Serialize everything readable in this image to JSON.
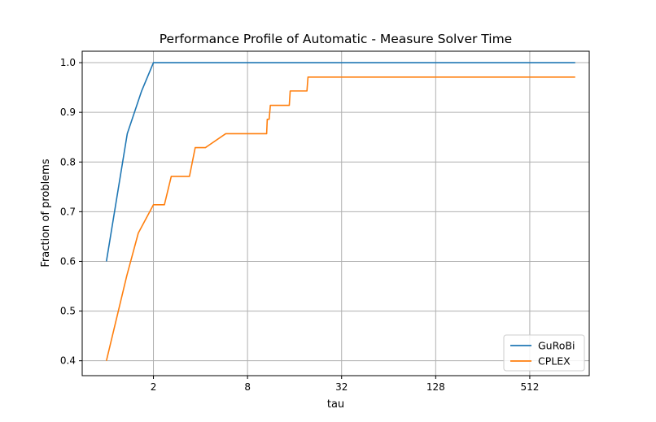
{
  "chart_data": {
    "type": "line",
    "title": "Performance Profile of Automatic - Measure Solver Time",
    "xlabel": "tau",
    "ylabel": "Fraction of problems",
    "x_scale": "log2",
    "xlim": [
      0.7,
      1230
    ],
    "ylim": [
      0.37,
      1.023
    ],
    "x_ticks": [
      2,
      8,
      32,
      128,
      512
    ],
    "x_tick_labels": [
      "2",
      "8",
      "32",
      "128",
      "512"
    ],
    "y_ticks": [
      0.4,
      0.5,
      0.6,
      0.7,
      0.8,
      0.9,
      1.0
    ],
    "y_tick_labels": [
      "0.4",
      "0.5",
      "0.6",
      "0.7",
      "0.8",
      "0.9",
      "1.0"
    ],
    "grid": true,
    "legend_position": "lower-right",
    "colors": {
      "GuRoBi": "#1f77b4",
      "CPLEX": "#ff7f0e"
    },
    "series": [
      {
        "name": "GuRoBi",
        "x": [
          1.0,
          1.36,
          1.68,
          2.0,
          1000
        ],
        "y": [
          0.6,
          0.857,
          0.943,
          1.0,
          1.0
        ]
      },
      {
        "name": "CPLEX",
        "x": [
          1.0,
          1.35,
          1.6,
          2.0,
          2.35,
          2.6,
          3.4,
          3.7,
          4.3,
          5.8,
          6.2,
          10.6,
          10.7,
          11.0,
          11.2,
          11.4,
          14.8,
          15.0,
          19.2,
          19.5,
          1000
        ],
        "y": [
          0.4,
          0.571,
          0.657,
          0.714,
          0.714,
          0.771,
          0.771,
          0.829,
          0.829,
          0.857,
          0.857,
          0.857,
          0.886,
          0.886,
          0.914,
          0.914,
          0.914,
          0.943,
          0.943,
          0.971,
          0.971
        ]
      }
    ]
  }
}
